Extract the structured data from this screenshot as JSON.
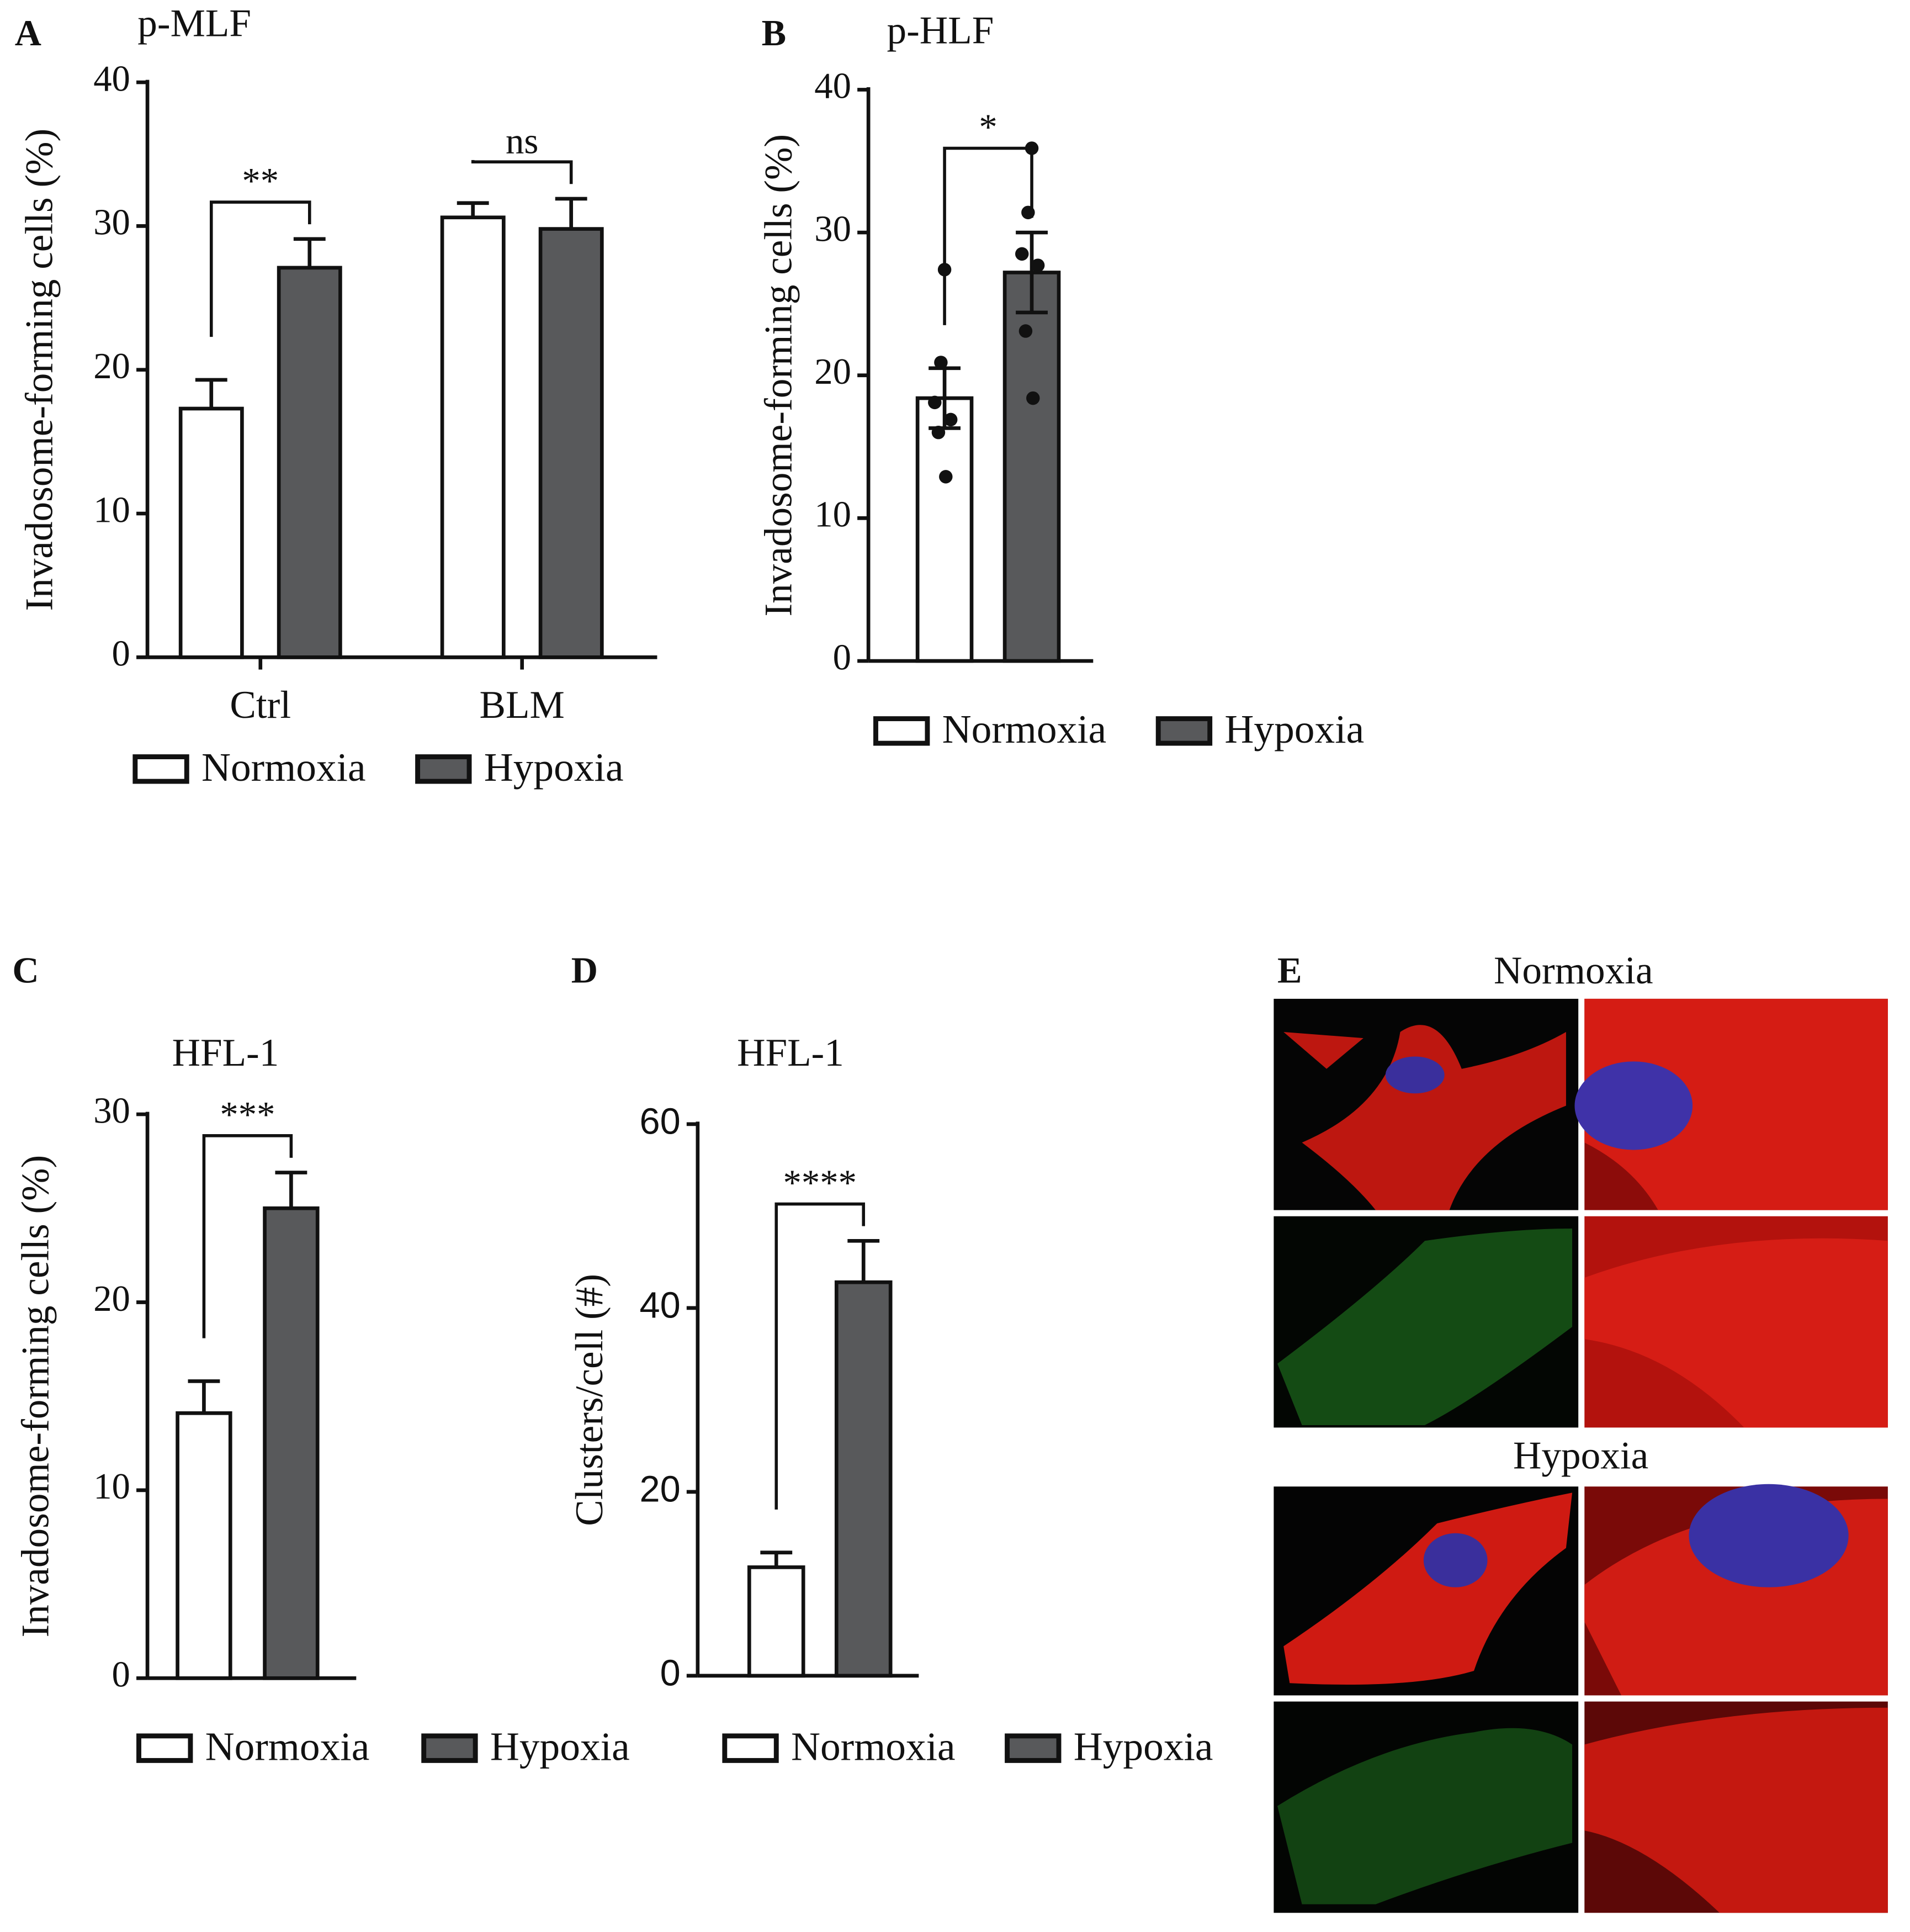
{
  "chart_data": [
    {
      "type": "bar",
      "panel": "A",
      "title": "p-MLF",
      "y_label": "Invadosome-forming cells (%)",
      "categories": [
        "Ctrl",
        "BLM"
      ],
      "series": [
        {
          "name": "Normoxia",
          "color": "#ffffff",
          "values": [
            17.3,
            30.6
          ],
          "errors": [
            2.0,
            1.0
          ]
        },
        {
          "name": "Hypoxia",
          "color": "#58595b",
          "values": [
            27.1,
            29.8
          ],
          "errors": [
            2.0,
            2.1
          ]
        }
      ],
      "annotations": [
        {
          "text": "**",
          "category": 0
        },
        {
          "text": "ns",
          "category": 1
        }
      ],
      "ylim": [
        0,
        40
      ],
      "yticks": [
        0,
        10,
        20,
        30,
        40
      ]
    },
    {
      "type": "bar",
      "panel": "B",
      "title": "p-HLF",
      "y_label": "Invadosome-forming cells (%)",
      "series": [
        {
          "name": "Normoxia",
          "color": "#ffffff",
          "values": [
            18.4
          ],
          "errors": [
            2.1
          ],
          "points": [
            27.4,
            20.9,
            18.1,
            16.9,
            16.0,
            12.9
          ]
        },
        {
          "name": "Hypoxia",
          "color": "#58595b",
          "values": [
            27.2
          ],
          "errors": [
            2.8
          ],
          "points": [
            35.9,
            31.4,
            28.5,
            27.7,
            23.1,
            18.4
          ]
        }
      ],
      "annotations": [
        {
          "text": "*",
          "category": 0
        }
      ],
      "ylim": [
        0,
        40
      ],
      "yticks": [
        0,
        10,
        20,
        30,
        40
      ]
    },
    {
      "type": "bar",
      "panel": "C",
      "title": "HFL-1",
      "y_label": "Invadosome-forming cells (%)",
      "series": [
        {
          "name": "Normoxia",
          "color": "#ffffff",
          "values": [
            14.1
          ],
          "errors": [
            1.7
          ]
        },
        {
          "name": "Hypoxia",
          "color": "#58595b",
          "values": [
            25.0
          ],
          "errors": [
            1.9
          ]
        }
      ],
      "annotations": [
        {
          "text": "***",
          "category": 0
        }
      ],
      "ylim": [
        0,
        30
      ],
      "yticks": [
        0,
        10,
        20,
        30
      ]
    },
    {
      "type": "bar",
      "panel": "D",
      "title": "HFL-1",
      "y_label": "Clusters/cell (#)",
      "series": [
        {
          "name": "Normoxia",
          "color": "#ffffff",
          "values": [
            11.8
          ],
          "errors": [
            1.6
          ]
        },
        {
          "name": "Hypoxia",
          "color": "#58595b",
          "values": [
            42.8
          ],
          "errors": [
            4.5
          ]
        }
      ],
      "annotations": [
        {
          "text": "****",
          "category": 0
        }
      ],
      "ylim": [
        0,
        60
      ],
      "yticks": [
        0,
        20,
        40,
        60
      ]
    }
  ],
  "panel_e": {
    "label": "E",
    "conditions": [
      "Normoxia",
      "Hypoxia"
    ]
  }
}
